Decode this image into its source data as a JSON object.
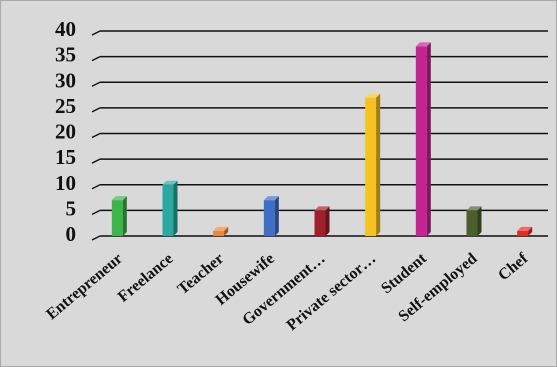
{
  "chart_data": {
    "type": "bar",
    "title": "",
    "xlabel": "",
    "ylabel": "",
    "ylim": [
      0,
      40
    ],
    "yticks": [
      0,
      5,
      10,
      15,
      20,
      25,
      30,
      35,
      40
    ],
    "grid": true,
    "legend": "none",
    "categories": [
      "Entrepreneur",
      "Freelance",
      "Teacher",
      "Housewife",
      "Government…",
      "Private sector…",
      "Student",
      "Self-employed",
      "Chef"
    ],
    "values": [
      7,
      10,
      1,
      7,
      5,
      27,
      37,
      5,
      1
    ],
    "colors": [
      "#3cb54a",
      "#2ca8a2",
      "#e8873a",
      "#3f6fc4",
      "#a01f2a",
      "#f6c222",
      "#c42592",
      "#4b5f2c",
      "#e52a26"
    ]
  },
  "style": {
    "background": "#d9d9d9",
    "frame_border": "#a8a8a8",
    "gridline": "#111111"
  }
}
